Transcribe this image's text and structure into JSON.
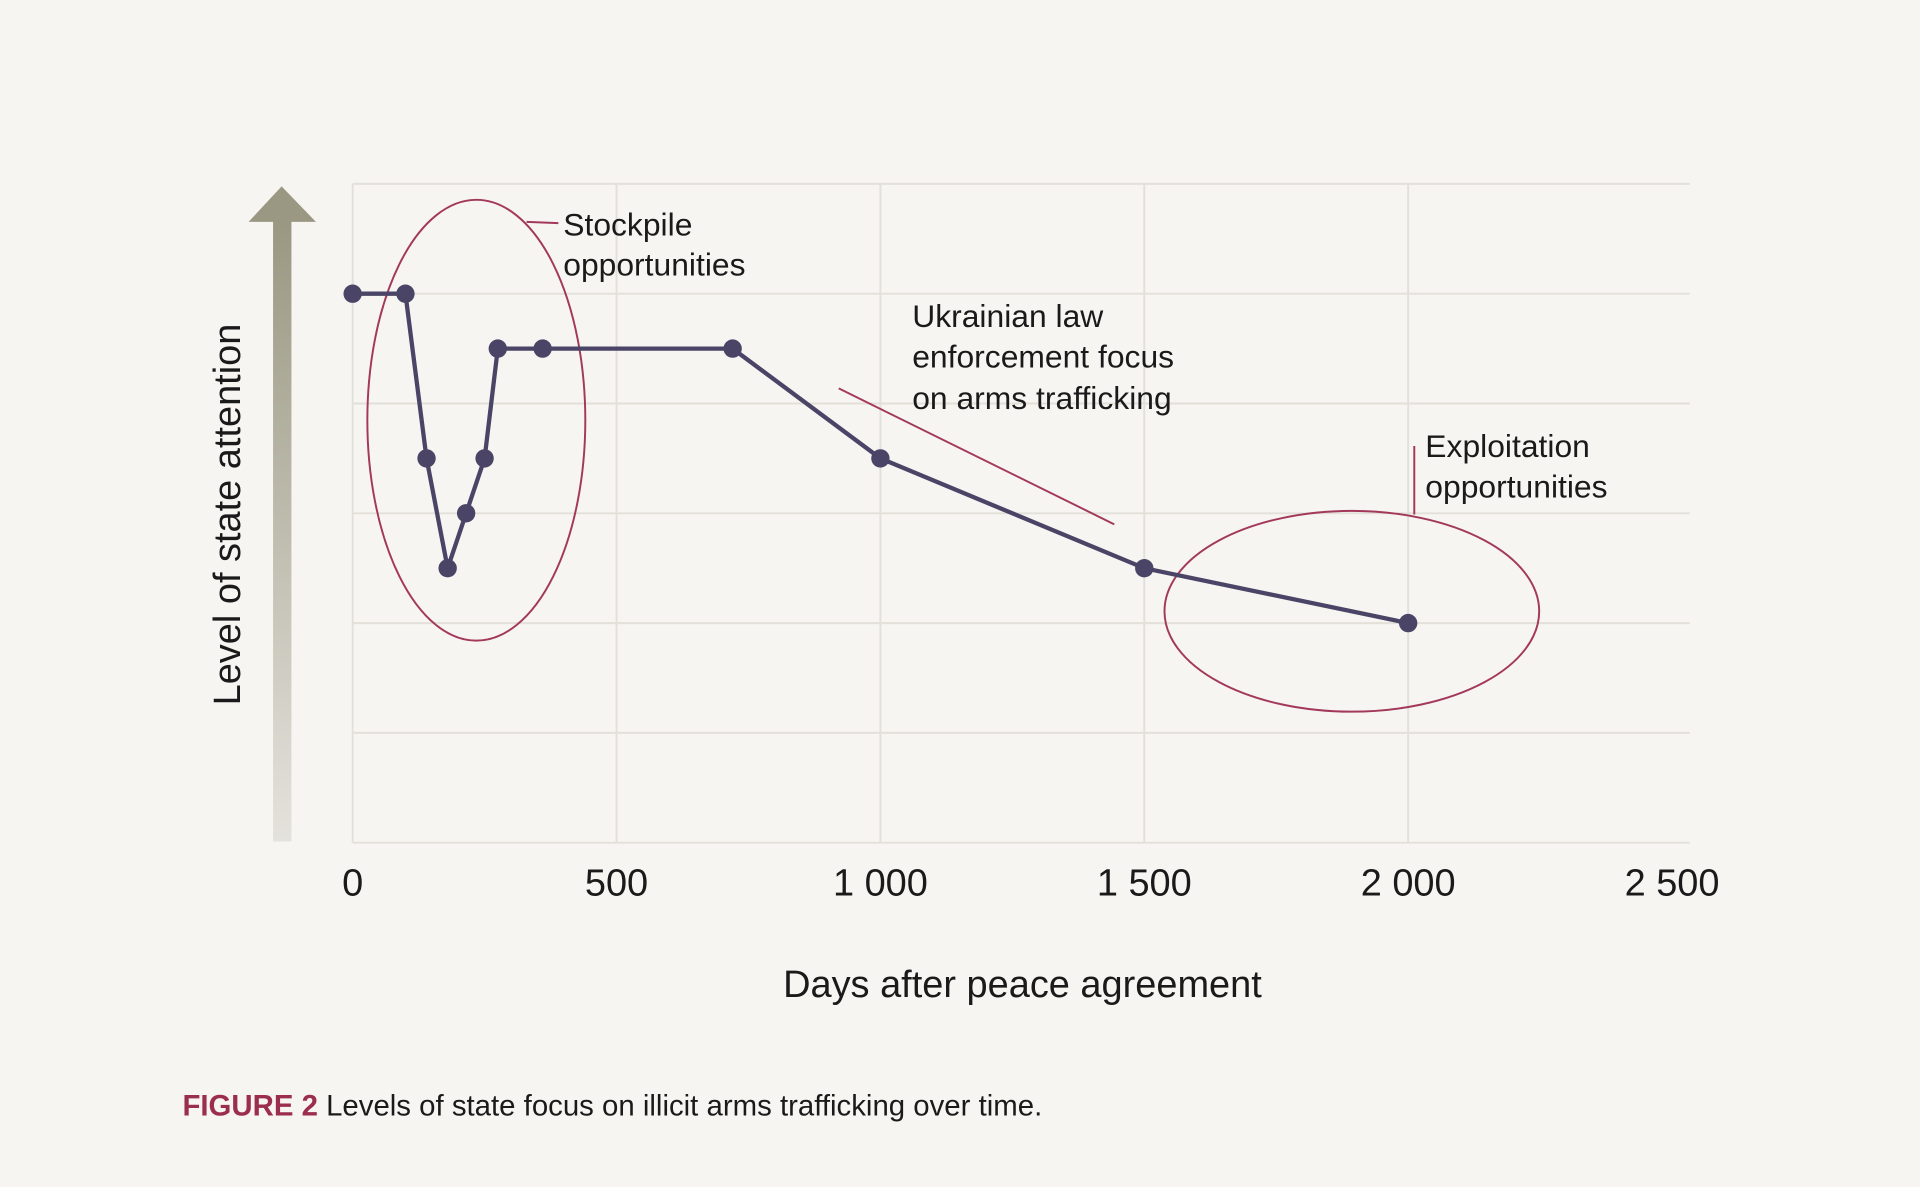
{
  "chart_data": {
    "type": "line",
    "title": "",
    "xlabel": "Days after peace agreement",
    "ylabel": "Level of state attention",
    "xlim": [
      0,
      2500
    ],
    "ylim": [
      0,
      6
    ],
    "x_ticks": [
      0,
      500,
      1000,
      1500,
      2000,
      2500
    ],
    "x_tick_labels": [
      "0",
      "500",
      "1 000",
      "1 500",
      "2 000",
      "2 500"
    ],
    "y_tick_labels": [],
    "grid": true,
    "series": [
      {
        "x": [
          0,
          100,
          140,
          180,
          215,
          250,
          275,
          360,
          720,
          1000,
          1500,
          2000
        ],
        "y": [
          5,
          5,
          3.5,
          2.5,
          3,
          3.5,
          4.5,
          4.5,
          4.5,
          3.5,
          2.5,
          2
        ]
      }
    ],
    "annotations": [
      {
        "id": "stockpile",
        "lines": [
          "Stockpile",
          "opportunities"
        ]
      },
      {
        "id": "enforcement",
        "lines": [
          "Ukrainian law",
          "enforcement focus",
          "on arms trafficking"
        ]
      },
      {
        "id": "exploitation",
        "lines": [
          "Exploitation",
          "opportunities"
        ]
      }
    ],
    "colors": {
      "background": "#f7f5f1",
      "grid": "#e3e0da",
      "line": "#4a4566",
      "annotation": "#a3395a",
      "arrow_top": "#9a9782",
      "arrow_bottom": "#e4e2dc"
    }
  },
  "caption": {
    "label": "FIGURE 2",
    "text": " Levels of state focus on illicit arms trafficking over time.",
    "label_color": "#9b2d4e"
  }
}
